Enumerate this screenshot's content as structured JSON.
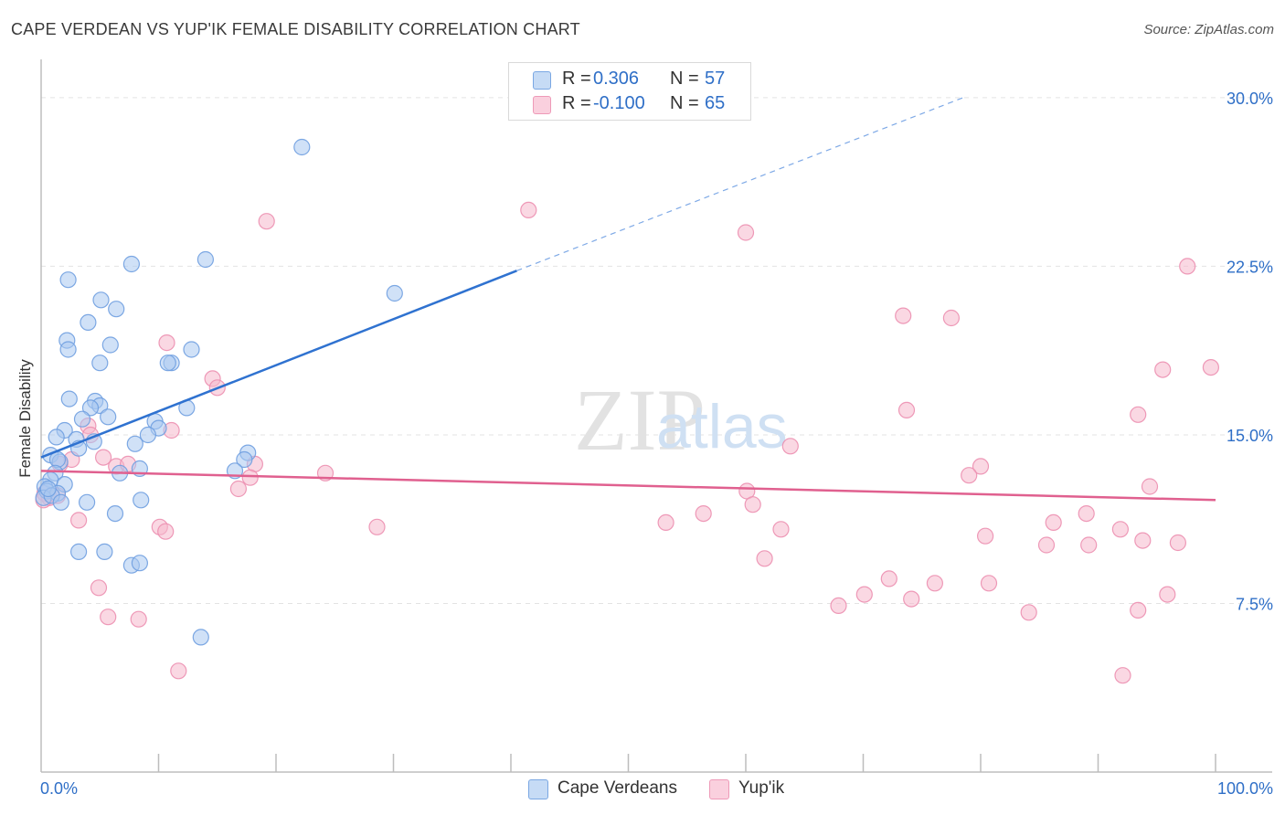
{
  "title": "CAPE VERDEAN VS YUP'IK FEMALE DISABILITY CORRELATION CHART",
  "source": "Source: ZipAtlas.com",
  "watermark": {
    "zip": "ZIP",
    "atlas": "atlas"
  },
  "legend_top": {
    "rows": [
      {
        "r_label": "R =",
        "r_value": "0.306",
        "n_label": "N =",
        "n_value": "57",
        "color": "#a9c8f0"
      },
      {
        "r_label": "R =",
        "r_value": "-0.100",
        "n_label": "N =",
        "n_value": "65",
        "color": "#f5b8cc"
      }
    ]
  },
  "legend_bottom": {
    "items": [
      {
        "label": "Cape Verdeans",
        "color": "#a9c8f0"
      },
      {
        "label": "Yup'ik",
        "color": "#f5b8cc"
      }
    ]
  },
  "chart_data": {
    "type": "scatter",
    "title": "CAPE VERDEAN VS YUP'IK FEMALE DISABILITY CORRELATION CHART",
    "xlabel": "",
    "ylabel": "Female Disability",
    "xlim": [
      0,
      100
    ],
    "ylim": [
      0,
      31.5
    ],
    "x_tick_labels": {
      "left": "0.0%",
      "right": "100.0%"
    },
    "y_ticks": [
      {
        "value": 7.5,
        "label": "7.5%"
      },
      {
        "value": 15.0,
        "label": "15.0%"
      },
      {
        "value": 22.5,
        "label": "22.5%"
      },
      {
        "value": 30.0,
        "label": "30.0%"
      }
    ],
    "grid": true,
    "legend_position": "top-center",
    "series": [
      {
        "name": "Cape Verdeans",
        "color": "#6f9fe0",
        "fill": "#a9c8f0",
        "trend": {
          "x0": 0,
          "y0": 14.0,
          "x1": 40.5,
          "y1": 22.3,
          "dash_to_x": 78.5,
          "dash_to_y": 30.0,
          "line_color": "#2f72d0"
        },
        "points": [
          [
            22.2,
            27.8
          ],
          [
            2.3,
            21.9
          ],
          [
            7.7,
            22.6
          ],
          [
            14.0,
            22.8
          ],
          [
            5.1,
            21.0
          ],
          [
            6.4,
            20.6
          ],
          [
            4.0,
            20.0
          ],
          [
            2.2,
            19.2
          ],
          [
            5.9,
            19.0
          ],
          [
            2.3,
            18.8
          ],
          [
            12.8,
            18.8
          ],
          [
            5.0,
            18.2
          ],
          [
            11.1,
            18.2
          ],
          [
            10.8,
            18.2
          ],
          [
            30.1,
            21.3
          ],
          [
            2.4,
            16.6
          ],
          [
            4.6,
            16.5
          ],
          [
            5.0,
            16.3
          ],
          [
            4.2,
            16.2
          ],
          [
            12.4,
            16.2
          ],
          [
            5.7,
            15.8
          ],
          [
            3.5,
            15.7
          ],
          [
            9.7,
            15.6
          ],
          [
            2.0,
            15.2
          ],
          [
            10.0,
            15.3
          ],
          [
            9.1,
            15.0
          ],
          [
            1.3,
            14.9
          ],
          [
            3.0,
            14.8
          ],
          [
            4.5,
            14.7
          ],
          [
            8.0,
            14.6
          ],
          [
            3.2,
            14.4
          ],
          [
            0.8,
            14.1
          ],
          [
            1.6,
            13.8
          ],
          [
            17.6,
            14.2
          ],
          [
            17.3,
            13.9
          ],
          [
            1.4,
            13.9
          ],
          [
            16.5,
            13.4
          ],
          [
            8.4,
            13.5
          ],
          [
            6.7,
            13.3
          ],
          [
            1.2,
            13.3
          ],
          [
            0.8,
            13.0
          ],
          [
            2.0,
            12.8
          ],
          [
            0.3,
            12.7
          ],
          [
            0.5,
            12.5
          ],
          [
            1.4,
            12.4
          ],
          [
            0.2,
            12.2
          ],
          [
            0.9,
            12.3
          ],
          [
            1.7,
            12.0
          ],
          [
            3.9,
            12.0
          ],
          [
            8.5,
            12.1
          ],
          [
            6.3,
            11.5
          ],
          [
            3.2,
            9.8
          ],
          [
            5.4,
            9.8
          ],
          [
            7.7,
            9.2
          ],
          [
            8.4,
            9.3
          ],
          [
            13.6,
            6.0
          ],
          [
            0.6,
            12.6
          ]
        ]
      },
      {
        "name": "Yup'ik",
        "color": "#ec8fb0",
        "fill": "#f5b8cc",
        "trend": {
          "x0": 0,
          "y0": 13.4,
          "x1": 100,
          "y1": 12.1,
          "line_color": "#e0608f"
        },
        "points": [
          [
            19.2,
            24.5
          ],
          [
            41.5,
            25.0
          ],
          [
            60.0,
            24.0
          ],
          [
            97.6,
            22.5
          ],
          [
            73.4,
            20.3
          ],
          [
            77.5,
            20.2
          ],
          [
            10.7,
            19.1
          ],
          [
            95.5,
            17.9
          ],
          [
            99.6,
            18.0
          ],
          [
            14.6,
            17.5
          ],
          [
            15.0,
            17.1
          ],
          [
            73.7,
            16.1
          ],
          [
            93.4,
            15.9
          ],
          [
            4.0,
            15.4
          ],
          [
            11.1,
            15.2
          ],
          [
            4.2,
            15.0
          ],
          [
            63.8,
            14.5
          ],
          [
            5.3,
            14.0
          ],
          [
            2.6,
            13.9
          ],
          [
            1.6,
            13.7
          ],
          [
            6.4,
            13.6
          ],
          [
            7.4,
            13.7
          ],
          [
            18.2,
            13.7
          ],
          [
            24.2,
            13.3
          ],
          [
            80.0,
            13.6
          ],
          [
            79.0,
            13.2
          ],
          [
            17.8,
            13.1
          ],
          [
            94.4,
            12.7
          ],
          [
            16.8,
            12.6
          ],
          [
            60.1,
            12.5
          ],
          [
            60.6,
            11.9
          ],
          [
            0.3,
            12.4
          ],
          [
            0.7,
            12.2
          ],
          [
            0.2,
            12.1
          ],
          [
            1.4,
            12.3
          ],
          [
            56.4,
            11.5
          ],
          [
            3.2,
            11.2
          ],
          [
            53.2,
            11.1
          ],
          [
            28.6,
            10.9
          ],
          [
            89.0,
            11.5
          ],
          [
            86.2,
            11.1
          ],
          [
            10.1,
            10.9
          ],
          [
            10.6,
            10.7
          ],
          [
            63.0,
            10.8
          ],
          [
            80.4,
            10.5
          ],
          [
            91.9,
            10.8
          ],
          [
            93.8,
            10.3
          ],
          [
            96.8,
            10.2
          ],
          [
            85.6,
            10.1
          ],
          [
            89.2,
            10.1
          ],
          [
            61.6,
            9.5
          ],
          [
            72.2,
            8.6
          ],
          [
            76.1,
            8.4
          ],
          [
            80.7,
            8.4
          ],
          [
            4.9,
            8.2
          ],
          [
            70.1,
            7.9
          ],
          [
            74.1,
            7.7
          ],
          [
            95.9,
            7.9
          ],
          [
            67.9,
            7.4
          ],
          [
            93.4,
            7.2
          ],
          [
            84.1,
            7.1
          ],
          [
            5.7,
            6.9
          ],
          [
            8.3,
            6.8
          ],
          [
            11.7,
            4.5
          ],
          [
            92.1,
            4.3
          ]
        ]
      }
    ]
  }
}
